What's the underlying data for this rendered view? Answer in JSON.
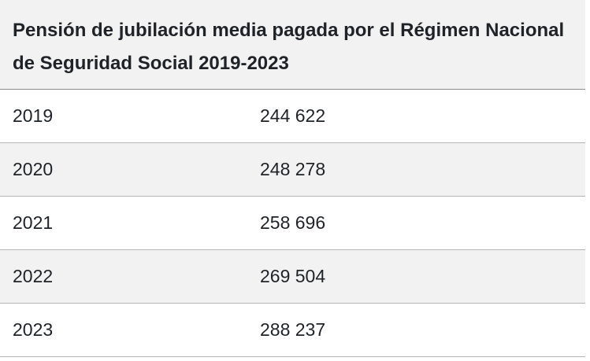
{
  "table": {
    "title": "Pensión de jubilación media pagada por el Régimen Nacional de Seguridad Social 2019-2023",
    "rows": [
      {
        "year": "2019",
        "value": "244 622"
      },
      {
        "year": "2020",
        "value": "248 278"
      },
      {
        "year": "2021",
        "value": "258 696"
      },
      {
        "year": "2022",
        "value": "269 504"
      },
      {
        "year": "2023",
        "value": "288 237"
      }
    ]
  }
}
